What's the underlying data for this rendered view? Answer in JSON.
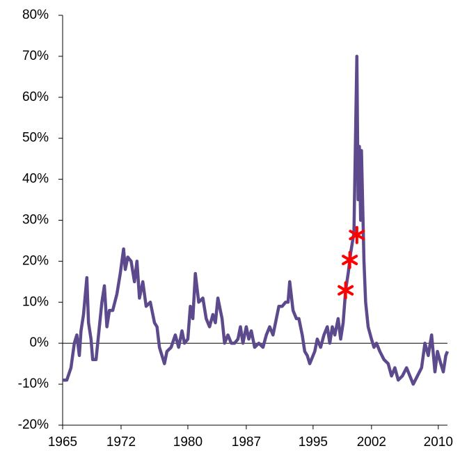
{
  "chart_data": {
    "type": "line",
    "xlim": [
      1965,
      2011.1
    ],
    "xticks": [
      1965,
      1972,
      1980,
      1987,
      1995,
      2002,
      2010
    ],
    "ylim": [
      -20,
      80
    ],
    "yticks": [
      {
        "value": -20,
        "label": "-20%"
      },
      {
        "value": -10,
        "label": "-10%"
      },
      {
        "value": 0,
        "label": "0%"
      },
      {
        "value": 10,
        "label": "10%"
      },
      {
        "value": 20,
        "label": "20%"
      },
      {
        "value": 30,
        "label": "30%"
      },
      {
        "value": 40,
        "label": "40%"
      },
      {
        "value": 50,
        "label": "50%"
      },
      {
        "value": 60,
        "label": "60%"
      },
      {
        "value": 70,
        "label": "70%"
      },
      {
        "value": 80,
        "label": "80%"
      }
    ],
    "series": [
      {
        "color": "#5c4a8c",
        "x": [
          1965.0,
          1965.5,
          1966.0,
          1966.4,
          1966.7,
          1967.0,
          1967.2,
          1967.5,
          1967.9,
          1968.1,
          1968.4,
          1968.6,
          1969.0,
          1969.3,
          1969.7,
          1970.0,
          1970.3,
          1970.6,
          1971.0,
          1971.5,
          1971.9,
          1972.3,
          1972.5,
          1972.8,
          1973.2,
          1973.6,
          1973.9,
          1974.2,
          1974.6,
          1975.0,
          1975.5,
          1976.0,
          1976.3,
          1976.6,
          1977.2,
          1977.5,
          1978.0,
          1978.5,
          1978.9,
          1979.3,
          1979.6,
          1980.0,
          1980.3,
          1980.6,
          1980.9,
          1981.3,
          1981.8,
          1982.2,
          1982.6,
          1983.0,
          1983.3,
          1983.6,
          1984.1,
          1984.4,
          1984.8,
          1985.2,
          1985.6,
          1986.0,
          1986.3,
          1986.6,
          1987.0,
          1987.3,
          1987.6,
          1988.0,
          1988.5,
          1989.0,
          1989.4,
          1989.8,
          1990.2,
          1990.5,
          1990.9,
          1991.3,
          1991.7,
          1992.0,
          1992.2,
          1992.6,
          1993.0,
          1993.3,
          1993.7,
          1994.0,
          1994.3,
          1994.6,
          1995.2,
          1995.5,
          1995.9,
          1996.3,
          1996.7,
          1997.0,
          1997.3,
          1997.6,
          1998.0,
          1998.3,
          1998.6,
          1998.9,
          1999.2,
          1999.5,
          1999.9,
          2000.25,
          2000.4,
          2000.55,
          2000.7,
          2000.8,
          2001.1,
          2001.3,
          2001.6,
          2002.0,
          2002.3,
          2002.6,
          2003.0,
          2003.5,
          2004.0,
          2004.4,
          2004.8,
          2005.2,
          2005.7,
          2006.2,
          2006.6,
          2007.0,
          2007.5,
          2008.0,
          2008.4,
          2008.8,
          2009.2,
          2009.6,
          2009.9,
          2010.3,
          2010.6,
          2010.9,
          2011.1
        ],
        "values": [
          -9,
          -9,
          -6,
          0,
          2,
          -3,
          3,
          7,
          16,
          5,
          1,
          -4,
          -4,
          2,
          10,
          14,
          4,
          8,
          8,
          12,
          17,
          23,
          18,
          21,
          20,
          15,
          20,
          11,
          15,
          9,
          10,
          5,
          4,
          -1,
          -5,
          -2,
          -1,
          2,
          -1,
          3,
          0,
          1,
          9,
          6,
          17,
          10,
          11,
          6,
          4,
          7,
          5,
          11,
          6,
          0,
          2,
          0,
          0,
          1,
          4,
          0,
          4,
          1,
          3,
          -1,
          0,
          -1,
          2,
          4,
          2,
          5,
          9,
          9,
          10,
          10,
          15,
          8,
          6,
          6,
          2,
          -2,
          -3,
          -5,
          -2,
          1,
          -1,
          2,
          4,
          0,
          4,
          2,
          6,
          1,
          5,
          13,
          17,
          22,
          27,
          70,
          35,
          48,
          30,
          47,
          20,
          10,
          4,
          1,
          -1,
          0,
          -2,
          -4,
          -5,
          -8,
          -6,
          -9,
          -8,
          -6,
          -8,
          -10,
          -8,
          -6,
          0,
          -3,
          2,
          -7,
          -2,
          -5,
          -7,
          -3,
          -2
        ]
      }
    ],
    "markers": {
      "color": "#ff0000",
      "x": [
        1998.9,
        1999.4,
        2000.25
      ],
      "values": [
        12.9,
        20.3,
        26.4
      ]
    }
  }
}
